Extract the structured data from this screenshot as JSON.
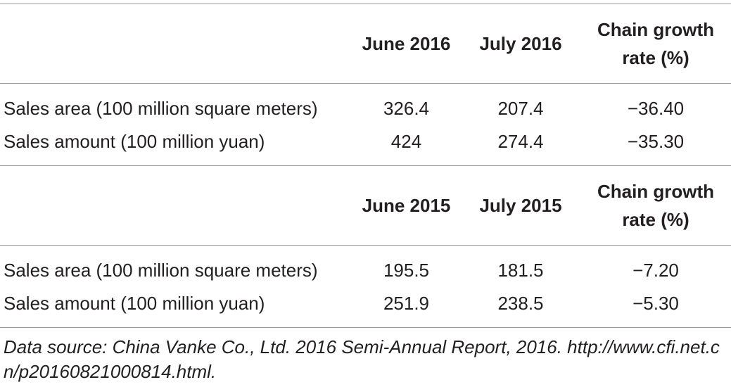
{
  "table": {
    "sections": [
      {
        "header": [
          "June 2016",
          "July 2016",
          "Chain growth rate (%)"
        ],
        "rows": [
          [
            "Sales area (100 million square meters)",
            "326.4",
            "207.4",
            "−36.40"
          ],
          [
            "Sales amount (100 million yuan)",
            "424",
            "274.4",
            "−35.30"
          ]
        ]
      },
      {
        "header": [
          "June 2015",
          "July 2015",
          "Chain growth rate (%)"
        ],
        "rows": [
          [
            "Sales area (100 million square meters)",
            "195.5",
            "181.5",
            "−7.20"
          ],
          [
            "Sales amount (100 million yuan)",
            "251.9",
            "238.5",
            "−5.30"
          ]
        ]
      }
    ]
  },
  "footnote": "Data source: China Vanke Co., Ltd. 2016 Semi-Annual Report, 2016. http://www.cfi.net.cn/p20160821000814.html."
}
